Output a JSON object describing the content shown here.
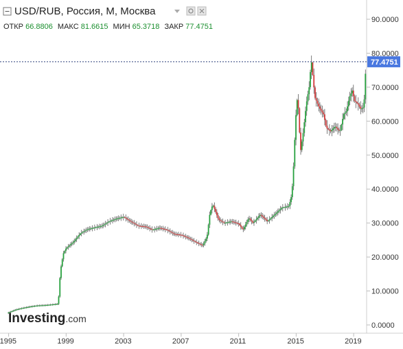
{
  "header": {
    "title": "USD/RUB, Россия, M, Москва",
    "ohlc": [
      {
        "label": "ОТКР",
        "value": "66.8806"
      },
      {
        "label": "МАКС",
        "value": "81.6615"
      },
      {
        "label": "МИН",
        "value": "65.3718"
      },
      {
        "label": "ЗАКР",
        "value": "77.4751"
      }
    ]
  },
  "logo": {
    "brand": "Investing",
    "suffix": ".com"
  },
  "price_tag": "77.4751",
  "colors": {
    "up": "#26a03d",
    "down": "#d23a3a",
    "price_tag": "#4a78e0",
    "grid": "#e6e6e6"
  },
  "chart_data": {
    "type": "candlestick",
    "title": "USD/RUB, Россия, M, Москва",
    "xlabel": "",
    "ylabel": "",
    "x_ticks": [
      "1995",
      "1999",
      "2003",
      "2007",
      "2011",
      "2015",
      "2019"
    ],
    "y_ticks": [
      "0.0000",
      "10.0000",
      "20.0000",
      "30.0000",
      "40.0000",
      "50.0000",
      "60.0000",
      "70.0000",
      "80.0000",
      "90.0000"
    ],
    "ylim": [
      0,
      95
    ],
    "xlim": [
      1994.4,
      2019.9
    ],
    "last_close": 77.4751,
    "grid": false,
    "series": [
      {
        "points": [
          [
            1994.9,
            3.5
          ],
          [
            1995.5,
            4.5
          ],
          [
            1996.0,
            5.0
          ],
          [
            1996.5,
            5.4
          ],
          [
            1997.0,
            5.7
          ],
          [
            1997.5,
            5.8
          ],
          [
            1998.0,
            6.0
          ],
          [
            1998.45,
            6.2
          ],
          [
            1998.6,
            16.0
          ],
          [
            1998.8,
            21.0
          ],
          [
            1999.0,
            22.6
          ],
          [
            1999.5,
            24.4
          ],
          [
            2000.0,
            27.0
          ],
          [
            2000.5,
            28.2
          ],
          [
            2001.0,
            28.7
          ],
          [
            2001.5,
            29.2
          ],
          [
            2002.0,
            30.5
          ],
          [
            2002.5,
            31.3
          ],
          [
            2003.0,
            31.8
          ],
          [
            2003.5,
            30.4
          ],
          [
            2004.0,
            29.2
          ],
          [
            2004.5,
            29.0
          ],
          [
            2005.0,
            28.0
          ],
          [
            2005.5,
            28.6
          ],
          [
            2006.0,
            28.0
          ],
          [
            2006.5,
            26.8
          ],
          [
            2007.0,
            26.5
          ],
          [
            2007.5,
            25.6
          ],
          [
            2008.0,
            24.4
          ],
          [
            2008.5,
            23.4
          ],
          [
            2008.8,
            26.0
          ],
          [
            2009.0,
            33.0
          ],
          [
            2009.2,
            35.5
          ],
          [
            2009.6,
            31.0
          ],
          [
            2010.0,
            30.0
          ],
          [
            2010.5,
            30.5
          ],
          [
            2011.0,
            29.8
          ],
          [
            2011.3,
            28.0
          ],
          [
            2011.7,
            31.5
          ],
          [
            2012.0,
            30.0
          ],
          [
            2012.5,
            32.5
          ],
          [
            2013.0,
            30.5
          ],
          [
            2013.5,
            32.5
          ],
          [
            2014.0,
            34.5
          ],
          [
            2014.5,
            35.0
          ],
          [
            2014.7,
            38.5
          ],
          [
            2014.85,
            49.0
          ],
          [
            2014.95,
            60.0
          ],
          [
            2015.1,
            68.0
          ],
          [
            2015.3,
            51.0
          ],
          [
            2015.5,
            57.0
          ],
          [
            2015.7,
            65.0
          ],
          [
            2015.9,
            70.0
          ],
          [
            2016.05,
            78.0
          ],
          [
            2016.3,
            67.0
          ],
          [
            2016.6,
            64.0
          ],
          [
            2016.9,
            62.0
          ],
          [
            2017.1,
            58.0
          ],
          [
            2017.4,
            57.0
          ],
          [
            2017.7,
            58.5
          ],
          [
            2017.9,
            57.5
          ],
          [
            2018.05,
            57.0
          ],
          [
            2018.3,
            62.0
          ],
          [
            2018.5,
            63.0
          ],
          [
            2018.7,
            67.0
          ],
          [
            2018.9,
            69.0
          ],
          [
            2019.05,
            66.0
          ],
          [
            2019.3,
            65.0
          ],
          [
            2019.5,
            63.5
          ],
          [
            2019.65,
            64.0
          ],
          [
            2019.75,
            66.88
          ],
          [
            2019.85,
            77.4751
          ]
        ]
      }
    ]
  }
}
